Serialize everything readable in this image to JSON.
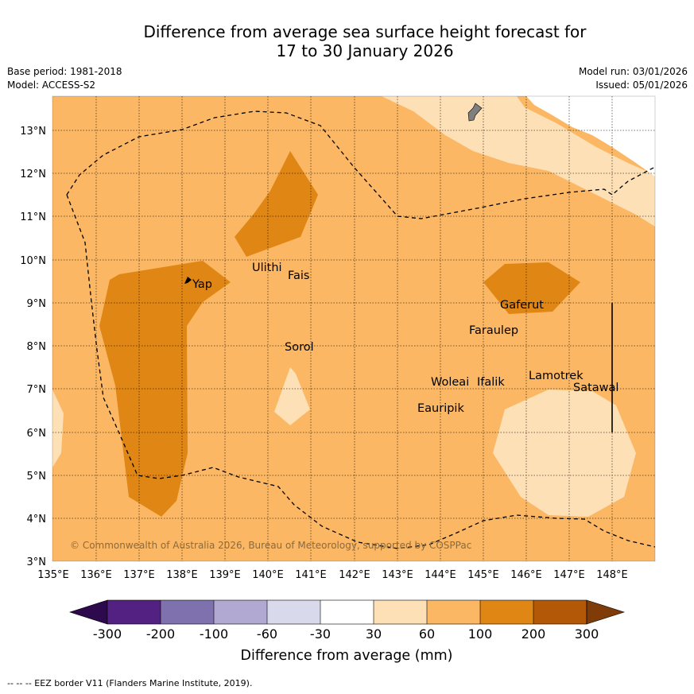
{
  "title": {
    "line1": "Difference from average sea surface height forecast for",
    "line2": "17 to 30 January 2026"
  },
  "meta": {
    "base_period": "Base period: 1981-2018",
    "model": "Model: ACCESS-S2",
    "model_run": "Model run: 03/01/2026",
    "issued": "Issued: 05/01/2026"
  },
  "map": {
    "lon_ticks": [
      "135°E",
      "136°E",
      "137°E",
      "138°E",
      "139°E",
      "140°E",
      "141°E",
      "142°E",
      "143°E",
      "144°E",
      "145°E",
      "146°E",
      "147°E",
      "148°E"
    ],
    "lat_ticks": [
      "13°N",
      "12°N",
      "11°N",
      "10°N",
      "9°N",
      "8°N",
      "7°N",
      "6°N",
      "5°N",
      "4°N",
      "3°N"
    ],
    "places": [
      {
        "name": "Yap",
        "lon": 138.2,
        "lat": 9.5
      },
      {
        "name": "Ulithi",
        "lon": 139.6,
        "lat": 9.85
      },
      {
        "name": "Fais",
        "lon": 140.5,
        "lat": 9.75
      },
      {
        "name": "Gaferut",
        "lon": 145.4,
        "lat": 9.2
      },
      {
        "name": "Faraulep",
        "lon": 144.6,
        "lat": 8.6
      },
      {
        "name": "Sorol",
        "lon": 140.4,
        "lat": 8.05
      },
      {
        "name": "Woleai",
        "lon": 143.9,
        "lat": 7.35
      },
      {
        "name": "Ifalik",
        "lon": 144.45,
        "lat": 7.25
      },
      {
        "name": "Lamotrek",
        "lon": 146.3,
        "lat": 7.45
      },
      {
        "name": "Satawal",
        "lon": 147.0,
        "lat": 7.1
      },
      {
        "name": "Eauripik",
        "lon": 143.1,
        "lat": 6.7
      }
    ],
    "copyright": "© Commonwealth of Australia 2026, Bureau of Meteorology, supported by COSPPac",
    "colors": {
      "base": "#fbb763",
      "light": "#fde0b5",
      "dark": "#e08615"
    }
  },
  "colorbar": {
    "labels": [
      "-300",
      "-200",
      "-100",
      "-60",
      "-30",
      "30",
      "60",
      "100",
      "200",
      "300"
    ],
    "colors": [
      "#2d0a4e",
      "#532181",
      "#7f71ae",
      "#b1a9d2",
      "#d9d9ec",
      "#ffffff",
      "#fde0b5",
      "#fbb763",
      "#e08615",
      "#b35806",
      "#7f3b08"
    ],
    "title": "Difference from average (mm)"
  },
  "footnote": "-- -- -- EEZ border V11 (Flanders Marine Institute, 2019)."
}
